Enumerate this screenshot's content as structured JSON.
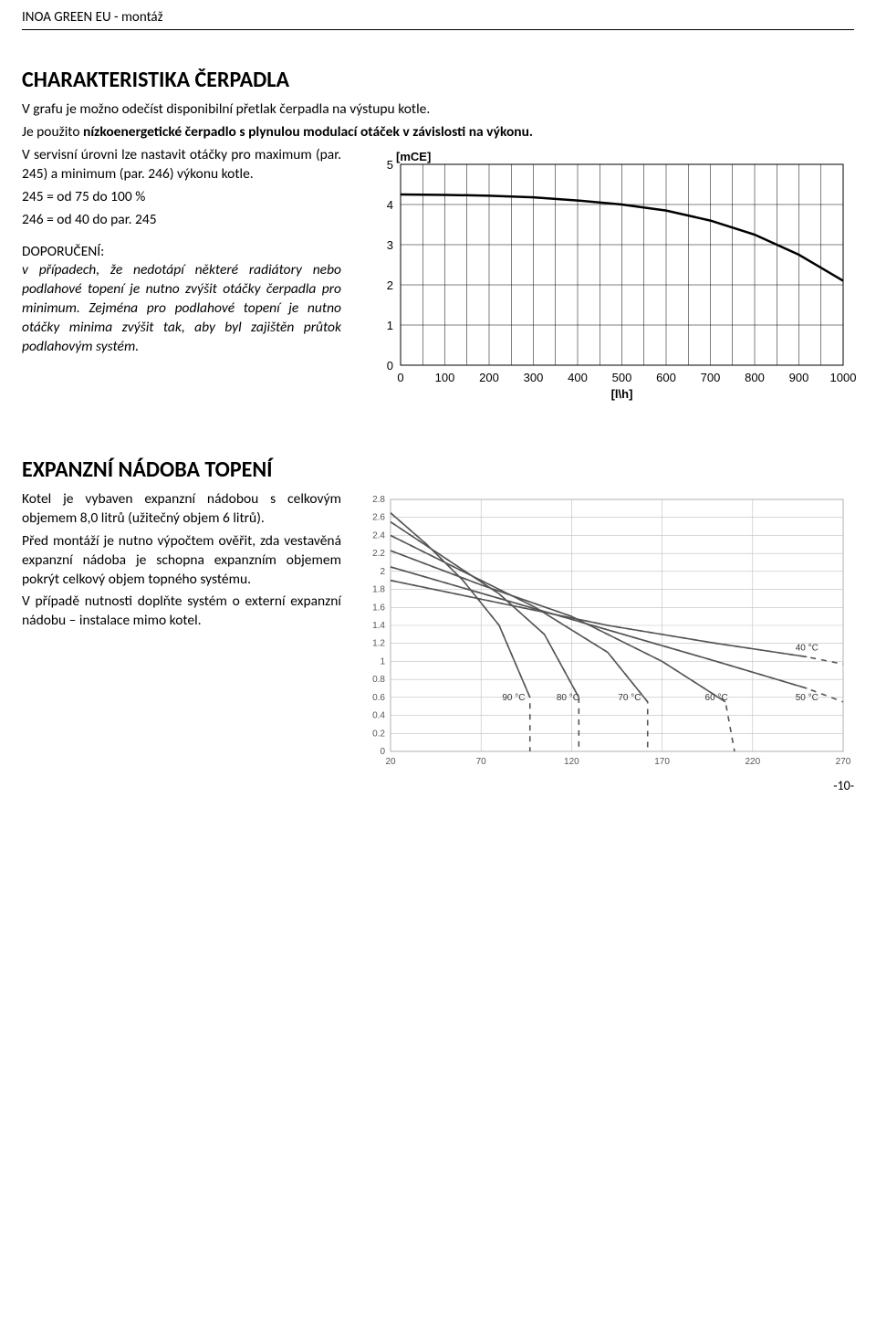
{
  "header": {
    "title": "INOA GREEN EU - montáž"
  },
  "section1": {
    "title": "CHARAKTERISTIKA ČERPADLA",
    "intro_plain": "V grafu je možno odečíst disponibilní přetlak čerpadla na výstupu kotle.",
    "intro_bold_pre": "Je použito ",
    "intro_bold": "nízkoenergetické čerpadlo s plynulou modulací otáček v závislosti na výkonu.",
    "p1": "V servisní úrovni lze nastavit otáčky pro maximum (par. 245) a minimum (par. 246) výkonu kotle.",
    "p2": "245 = od 75 do 100 %",
    "p3": "246 = od 40 do par. 245",
    "rec_title": "DOPORUČENÍ:",
    "rec_body": "v případech, že nedotápí některé radiátory nebo podlahové topení je nutno zvýšit otáčky čerpadla pro minimum. Zejména pro podlahové topení je nutno otáčky minima zvýšit tak, aby byl zajištěn průtok podlahovým systém.",
    "chart": {
      "type": "line",
      "y_label": "[mCE]",
      "x_label": "[l\\h]",
      "y_ticks": [
        0,
        1,
        2,
        3,
        4,
        5
      ],
      "x_ticks": [
        0,
        100,
        200,
        300,
        400,
        500,
        600,
        700,
        800,
        900,
        1000
      ],
      "xlim": [
        0,
        1000
      ],
      "ylim": [
        0,
        5
      ],
      "line_color": "#000000",
      "line_width": 2.5,
      "grid_color": "#000000",
      "grid_width": 0.5,
      "background": "#ffffff",
      "curve": [
        [
          0,
          4.25
        ],
        [
          100,
          4.24
        ],
        [
          200,
          4.22
        ],
        [
          300,
          4.18
        ],
        [
          400,
          4.1
        ],
        [
          500,
          4.0
        ],
        [
          600,
          3.85
        ],
        [
          700,
          3.6
        ],
        [
          800,
          3.25
        ],
        [
          900,
          2.75
        ],
        [
          1000,
          2.1
        ]
      ],
      "label_fontsize": 13,
      "axis_fontweight": 700
    }
  },
  "section2": {
    "title": "EXPANZNÍ NÁDOBA TOPENÍ",
    "p1": "Kotel je vybaven expanzní nádobou s celkovým objemem 8,0 litrů (užitečný objem 6 litrů).",
    "p2": "Před montáží je nutno výpočtem ověřit, zda vestavěná expanzní nádoba je schopna expanzním objemem pokrýt celkový objem topného systému.",
    "p3": "V případě nutnosti doplňte systém o externí expanzní nádobu – instalace mimo kotel.",
    "chart": {
      "type": "line",
      "xlim": [
        20,
        270
      ],
      "ylim": [
        0,
        2.8
      ],
      "x_ticks": [
        20,
        70,
        120,
        170,
        220,
        270
      ],
      "y_ticks": [
        0,
        0.2,
        0.4,
        0.6,
        0.8,
        1,
        1.2,
        1.4,
        1.6,
        1.8,
        2,
        2.2,
        2.4,
        2.6,
        2.8
      ],
      "line_color": "#555555",
      "line_width": 1.6,
      "grid_color": "#bfbfbf",
      "grid_width": 0.6,
      "background": "#ffffff",
      "label_fontsize": 10,
      "series": [
        {
          "name": "90 °C",
          "label_x": 88,
          "points": [
            [
              20,
              2.65
            ],
            [
              40,
              2.3
            ],
            [
              60,
              1.9
            ],
            [
              80,
              1.4
            ],
            [
              97,
              0.6
            ],
            [
              97,
              0
            ]
          ]
        },
        {
          "name": "80 °C",
          "label_x": 118,
          "points": [
            [
              20,
              2.55
            ],
            [
              50,
              2.15
            ],
            [
              80,
              1.75
            ],
            [
              105,
              1.3
            ],
            [
              124,
              0.6
            ],
            [
              124,
              0
            ]
          ]
        },
        {
          "name": "70 °C",
          "label_x": 152,
          "points": [
            [
              20,
              2.4
            ],
            [
              60,
              2.0
            ],
            [
              100,
              1.6
            ],
            [
              140,
              1.1
            ],
            [
              162,
              0.55
            ],
            [
              162,
              0
            ]
          ]
        },
        {
          "name": "60 °C",
          "label_x": 200,
          "points": [
            [
              20,
              2.23
            ],
            [
              70,
              1.85
            ],
            [
              120,
              1.5
            ],
            [
              170,
              1.0
            ],
            [
              205,
              0.55
            ],
            [
              210,
              0
            ]
          ]
        },
        {
          "name": "50 °C",
          "label_x": 250,
          "points": [
            [
              20,
              2.05
            ],
            [
              80,
              1.7
            ],
            [
              140,
              1.35
            ],
            [
              200,
              1.0
            ],
            [
              250,
              0.7
            ],
            [
              270,
              0.55
            ]
          ]
        },
        {
          "name": "40 °C",
          "label_x": 250,
          "label_y": 1.1,
          "points": [
            [
              20,
              1.9
            ],
            [
              80,
              1.65
            ],
            [
              140,
              1.4
            ],
            [
              200,
              1.2
            ],
            [
              250,
              1.05
            ],
            [
              270,
              0.97
            ]
          ]
        }
      ]
    }
  },
  "page_number": "-10-"
}
